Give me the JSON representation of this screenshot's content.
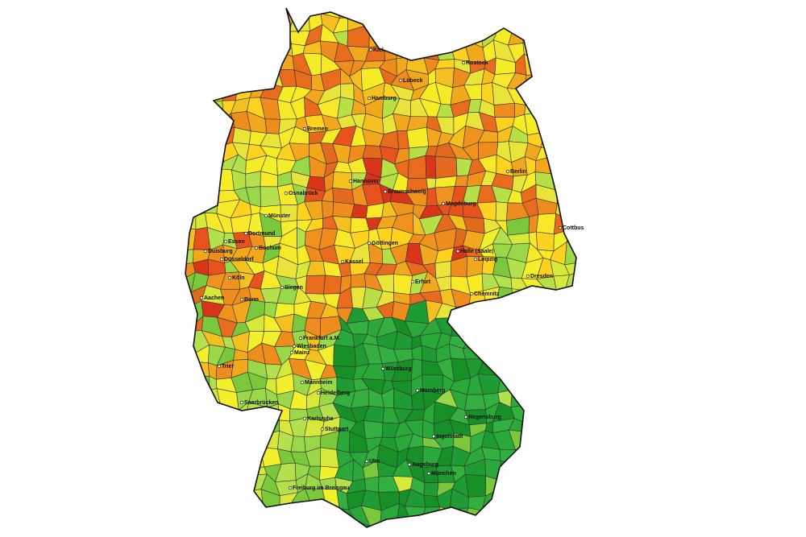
{
  "cities": [
    "Kiel",
    "Rostock",
    "Lübeck",
    "Hamburg",
    "Bremen",
    "Berlin",
    "Hannover",
    "Osnabrück",
    "Braunschweig",
    "Magdeburg",
    "Münster",
    "Cottbus",
    "Dortmund",
    "Essen",
    "Duisburg",
    "Bochum",
    "Düsseldorf",
    "Göttingen",
    "Kassel",
    "Halle (Saale)",
    "Leipzig",
    "Köln",
    "Dresden",
    "Bonn",
    "Aachen",
    "Siegen",
    "Erfurt",
    "Chemnitz",
    "Frankfurt a.M.",
    "Wiesbaden",
    "Mainz",
    "Trier",
    "Würzburg",
    "Mannheim",
    "Heidelberg",
    "Nürnberg",
    "Saarbrücken",
    "Karlsruhe",
    "Regensburg",
    "Stuttgart",
    "Ingolstadt",
    "Ulm",
    "Augsburg",
    "München",
    "Freiburg im Breisgau"
  ]
}
